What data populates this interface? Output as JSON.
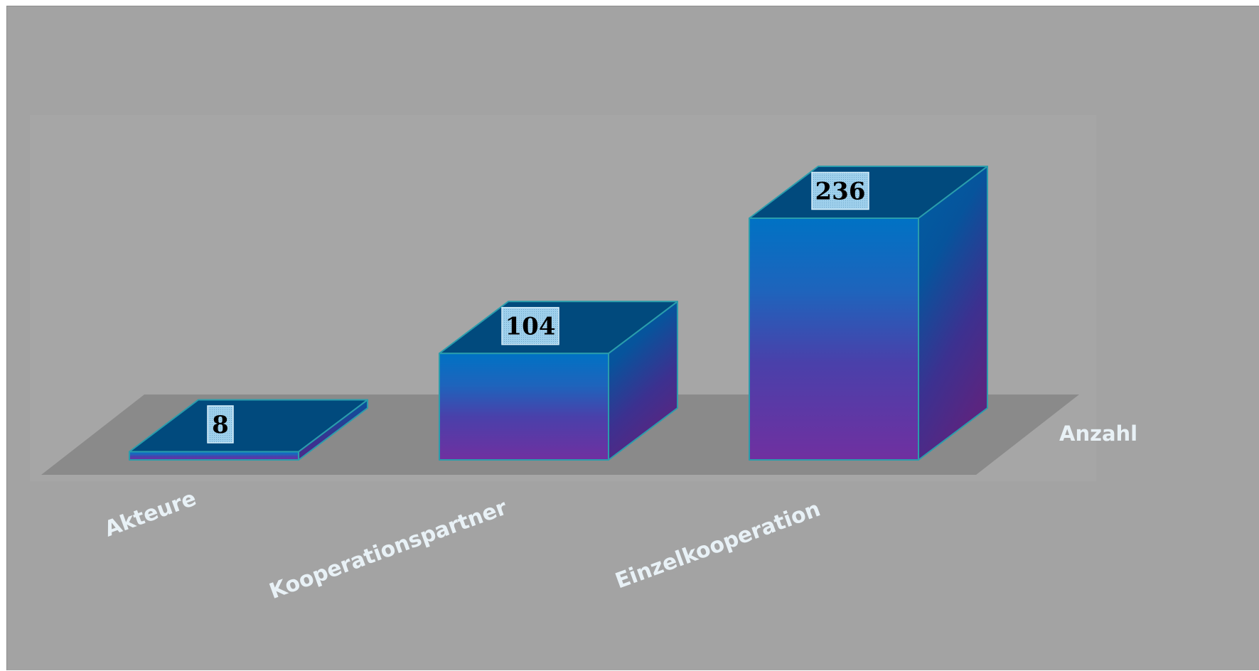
{
  "chart_data": {
    "type": "bar",
    "style": "3d",
    "categories": [
      "Akteure",
      "Kooperationspartner",
      "Einzelkooperation"
    ],
    "series": [
      {
        "name": "Anzahl",
        "values": [
          8,
          104,
          236
        ]
      }
    ],
    "data_labels": true,
    "ylim": [
      0,
      236
    ],
    "grid": false,
    "legend": "none"
  },
  "colors": {
    "background": "#a3a3a3",
    "plot_area": "#a6a6a6",
    "floor": "#8a8a8a",
    "bar_top": "#014a7d",
    "bar_front_top": "#0072c4",
    "bar_front_bottom": "#7030a0",
    "bar_side_top": "#005fa3",
    "bar_side_bottom": "#5a2580",
    "bar_edge": "#2a9dac",
    "label_text": "#e8f1f6"
  }
}
